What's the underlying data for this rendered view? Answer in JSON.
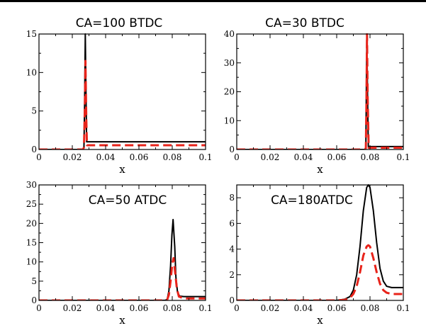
{
  "chart_data": [
    {
      "type": "line",
      "title": "CA=100 BTDC",
      "xlabel": "x",
      "ylabel": "",
      "xlim": [
        0,
        0.1
      ],
      "ylim": [
        0,
        15
      ],
      "xticks": [
        0,
        0.02,
        0.04,
        0.06,
        0.08,
        0.1
      ],
      "xtick_labels": [
        "0",
        "0.02",
        "0.04",
        "0.06",
        "0.08",
        "0.1"
      ],
      "yticks": [
        0,
        5,
        10,
        15
      ],
      "ytick_labels": [
        "0",
        "5",
        "10",
        "15"
      ],
      "grid": false,
      "series": [
        {
          "color": "#000000",
          "style": "solid",
          "x": [
            0,
            0.0265,
            0.027,
            0.0274,
            0.0278,
            0.0283,
            0.0286,
            0.1
          ],
          "y": [
            0,
            0,
            0.3,
            6.0,
            15.0,
            6.0,
            1.0,
            1.0
          ]
        },
        {
          "color": "#e8231a",
          "style": "dashed",
          "x": [
            0,
            0.0265,
            0.027,
            0.0275,
            0.0279,
            0.0284,
            0.0288,
            0.1
          ],
          "y": [
            0,
            0,
            0.3,
            5.0,
            11.5,
            4.0,
            0.55,
            0.55
          ]
        }
      ]
    },
    {
      "type": "line",
      "title": "CA=30 BTDC",
      "xlabel": "x",
      "ylabel": "",
      "xlim": [
        0,
        0.1
      ],
      "ylim": [
        0,
        40
      ],
      "xticks": [
        0,
        0.02,
        0.04,
        0.06,
        0.08,
        0.1
      ],
      "xtick_labels": [
        "0",
        "0.02",
        "0.04",
        "0.06",
        "0.08",
        "0.1"
      ],
      "yticks": [
        0,
        10,
        20,
        30,
        40
      ],
      "ytick_labels": [
        "0",
        "10",
        "20",
        "30",
        "40"
      ],
      "grid": false,
      "series": [
        {
          "color": "#000000",
          "style": "solid",
          "x": [
            0,
            0.077,
            0.0775,
            0.0778,
            0.0781,
            0.0785,
            0.079,
            0.1
          ],
          "y": [
            0,
            0,
            0.5,
            20,
            40,
            20,
            1.0,
            1.0
          ]
        },
        {
          "color": "#e8231a",
          "style": "dashed",
          "x": [
            0,
            0.077,
            0.0775,
            0.0779,
            0.0782,
            0.0786,
            0.0792,
            0.1
          ],
          "y": [
            0,
            0,
            0.5,
            18,
            40,
            18,
            0.6,
            0.6
          ]
        }
      ]
    },
    {
      "type": "line",
      "title": "CA=50 ATDC",
      "xlabel": "x",
      "ylabel": "",
      "xlim": [
        0,
        0.1
      ],
      "ylim": [
        0,
        30
      ],
      "xticks": [
        0,
        0.02,
        0.04,
        0.06,
        0.08,
        0.1
      ],
      "xtick_labels": [
        "0",
        "0.02",
        "0.04",
        "0.06",
        "0.08",
        "0.1"
      ],
      "yticks": [
        0,
        5,
        10,
        15,
        20,
        25,
        30
      ],
      "ytick_labels": [
        "0",
        "5",
        "10",
        "15",
        "20",
        "25",
        "30"
      ],
      "grid": false,
      "series": [
        {
          "color": "#000000",
          "style": "solid",
          "x": [
            0,
            0.074,
            0.076,
            0.077,
            0.078,
            0.079,
            0.0798,
            0.0805,
            0.0815,
            0.0822,
            0.0832,
            0.0845,
            0.087,
            0.1
          ],
          "y": [
            0,
            0,
            0.05,
            0.3,
            2.5,
            9,
            17,
            21,
            14,
            6,
            2,
            1.1,
            1.0,
            1.0
          ]
        },
        {
          "color": "#e8231a",
          "style": "dashed",
          "x": [
            0,
            0.074,
            0.077,
            0.078,
            0.079,
            0.08,
            0.0808,
            0.0818,
            0.0828,
            0.084,
            0.087,
            0.1
          ],
          "y": [
            0,
            0,
            0.2,
            1.5,
            5,
            9.5,
            11,
            7,
            3,
            1,
            0.5,
            0.5
          ]
        }
      ]
    },
    {
      "type": "line",
      "title": "CA=180ATDC",
      "xlabel": "x",
      "ylabel": "",
      "xlim": [
        0,
        0.1
      ],
      "ylim": [
        0,
        9
      ],
      "xticks": [
        0,
        0.02,
        0.04,
        0.06,
        0.08,
        0.1
      ],
      "xtick_labels": [
        "0",
        "0.02",
        "0.04",
        "0.06",
        "0.08",
        "0.1"
      ],
      "yticks": [
        0,
        2,
        4,
        6,
        8
      ],
      "ytick_labels": [
        "0",
        "2",
        "4",
        "6",
        "8"
      ],
      "grid": false,
      "series": [
        {
          "color": "#000000",
          "style": "solid",
          "x": [
            0,
            0.06,
            0.065,
            0.068,
            0.07,
            0.072,
            0.074,
            0.076,
            0.078,
            0.079,
            0.08,
            0.082,
            0.084,
            0.086,
            0.088,
            0.09,
            0.093,
            0.1
          ],
          "y": [
            0,
            0,
            0.1,
            0.3,
            0.8,
            2.0,
            4.2,
            7.0,
            8.8,
            9.0,
            8.8,
            7.0,
            4.5,
            2.5,
            1.5,
            1.1,
            1.0,
            1.0
          ]
        },
        {
          "color": "#e8231a",
          "style": "dashed",
          "x": [
            0,
            0.06,
            0.065,
            0.068,
            0.07,
            0.072,
            0.074,
            0.076,
            0.078,
            0.079,
            0.08,
            0.082,
            0.084,
            0.086,
            0.088,
            0.09,
            0.093,
            0.1
          ],
          "y": [
            0,
            0,
            0.05,
            0.2,
            0.5,
            1.1,
            2.2,
            3.5,
            4.2,
            4.3,
            4.2,
            3.3,
            2.2,
            1.3,
            0.8,
            0.6,
            0.5,
            0.5
          ]
        }
      ]
    }
  ]
}
